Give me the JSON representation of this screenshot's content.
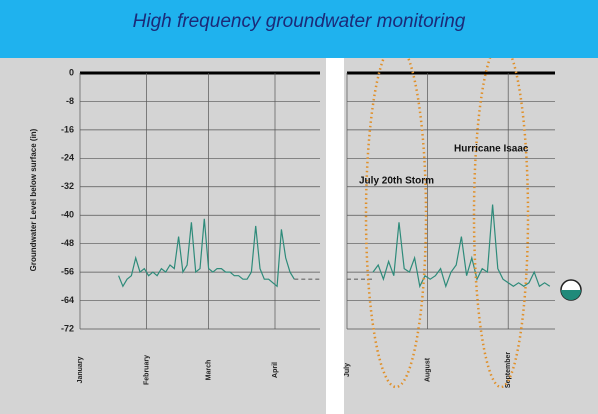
{
  "chart_data": [
    {
      "type": "line",
      "title": "High frequency groundwater monitoring",
      "ylabel": "Groundwater Level  below surface (in)",
      "ylim": [
        -72,
        0
      ],
      "yticks": [
        0,
        -8,
        -16,
        -24,
        -32,
        -40,
        -48,
        -56,
        -64,
        -72
      ],
      "xlim": [
        0,
        112
      ],
      "xticks": [
        {
          "value": 0,
          "label": "January"
        },
        {
          "value": 31,
          "label": "February"
        },
        {
          "value": 60,
          "label": "March"
        },
        {
          "value": 91,
          "label": "April"
        }
      ],
      "grid": true,
      "series": [
        {
          "color": "#2e8b7a",
          "dashed": false,
          "x": [
            18,
            20,
            22,
            24,
            26,
            28,
            30,
            32,
            34,
            36,
            38,
            40,
            42,
            44,
            46,
            48,
            50,
            52,
            54,
            56,
            58,
            60,
            62,
            64,
            66,
            68,
            70,
            72,
            74,
            76,
            78,
            80,
            82,
            84,
            86,
            88,
            90,
            92,
            94,
            96,
            98,
            100
          ],
          "values": [
            -57,
            -60,
            -58,
            -57,
            -52,
            -56,
            -55,
            -57,
            -56,
            -57,
            -55,
            -56,
            -54,
            -55,
            -46,
            -56,
            -54,
            -42,
            -56,
            -55,
            -41,
            -55,
            -56,
            -55,
            -55,
            -56,
            -56,
            -57,
            -57,
            -58,
            -58,
            -56,
            -43,
            -55,
            -58,
            -58,
            -59,
            -60,
            -44,
            -52,
            -56,
            -58
          ]
        },
        {
          "color": "#666666",
          "dashed": true,
          "x": [
            100,
            112
          ],
          "values": [
            -58,
            -58
          ]
        }
      ]
    },
    {
      "type": "line",
      "ylim": [
        -72,
        0
      ],
      "yticks": [
        0,
        -8,
        -16,
        -24,
        -32,
        -40,
        -48,
        -56,
        -64,
        -72
      ],
      "xlim": [
        0,
        80
      ],
      "xticks": [
        {
          "value": 0,
          "label": "July"
        },
        {
          "value": 31,
          "label": "August"
        },
        {
          "value": 62,
          "label": "September"
        }
      ],
      "grid": true,
      "annotations": [
        "July 20th Storm",
        "Hurricane Isaac"
      ],
      "series": [
        {
          "color": "#666666",
          "dashed": true,
          "x": [
            0,
            10
          ],
          "values": [
            -58,
            -58
          ]
        },
        {
          "color": "#2e8b7a",
          "dashed": false,
          "x": [
            10,
            12,
            14,
            16,
            18,
            20,
            22,
            24,
            26,
            28,
            30,
            32,
            34,
            36,
            38,
            40,
            42,
            44,
            46,
            48,
            50,
            52,
            54,
            56,
            58,
            60,
            62,
            64,
            66,
            68,
            70,
            72,
            74,
            76,
            78
          ],
          "values": [
            -56,
            -54,
            -58,
            -53,
            -57,
            -42,
            -55,
            -56,
            -52,
            -60,
            -57,
            -58,
            -57,
            -55,
            -60,
            -56,
            -54,
            -46,
            -57,
            -52,
            -58,
            -55,
            -56,
            -37,
            -55,
            -58,
            -59,
            -60,
            -59,
            -60,
            -59,
            -56,
            -60,
            -59,
            -60
          ]
        }
      ]
    }
  ]
}
